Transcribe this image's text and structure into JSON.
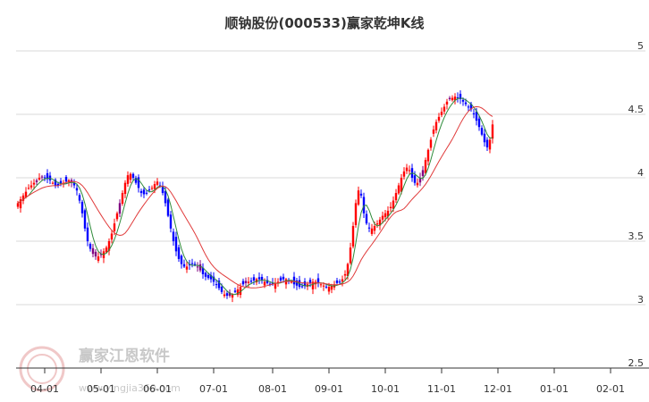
{
  "chart_data": {
    "type": "candlestick",
    "title": "顺钠股份(000533)赢家乾坤K线",
    "xlabel": "",
    "ylabel": "",
    "ylim": [
      2.5,
      5.0
    ],
    "grid": true,
    "y_ticks": [
      {
        "value": 5.0,
        "label": "5"
      },
      {
        "value": 4.5,
        "label": "4.5"
      },
      {
        "value": 4.0,
        "label": "4"
      },
      {
        "value": 3.5,
        "label": "3.5"
      },
      {
        "value": 3.0,
        "label": "3"
      },
      {
        "value": 2.5,
        "label": "2.5"
      }
    ],
    "x_ticks": [
      "04-01",
      "05-01",
      "06-01",
      "07-01",
      "08-01",
      "09-01",
      "10-01",
      "11-01",
      "12-01",
      "01-01",
      "02-01"
    ],
    "x_tick_index": [
      10,
      31,
      52,
      73,
      95,
      116,
      137,
      158,
      179,
      200,
      221
    ],
    "candle_colors": {
      "up": "#ff0000",
      "down": "#0000ff",
      "mixed": "#800080"
    },
    "series": [
      {
        "name": "",
        "kind": "candles",
        "close": [
          3.8,
          3.83,
          3.86,
          3.89,
          3.92,
          3.94,
          3.96,
          3.98,
          4.0,
          4.01,
          4.0,
          3.99,
          3.98,
          3.96,
          3.94,
          3.94,
          3.95,
          3.96,
          3.97,
          3.98,
          3.96,
          3.94,
          3.9,
          3.82,
          3.72,
          3.6,
          3.5,
          3.44,
          3.4,
          3.38,
          3.38,
          3.4,
          3.42,
          3.45,
          3.5,
          3.56,
          3.64,
          3.72,
          3.8,
          3.88,
          3.96,
          4.02,
          4.03,
          4.0,
          3.96,
          3.92,
          3.88,
          3.87,
          3.88,
          3.9,
          3.92,
          3.95,
          3.97,
          3.94,
          3.88,
          3.8,
          3.7,
          3.6,
          3.5,
          3.42,
          3.36,
          3.32,
          3.3,
          3.3,
          3.31,
          3.32,
          3.32,
          3.3,
          3.27,
          3.24,
          3.22,
          3.21,
          3.2,
          3.18,
          3.16,
          3.13,
          3.1,
          3.08,
          3.07,
          3.07,
          3.08,
          3.1,
          3.12,
          3.14,
          3.16,
          3.17,
          3.18,
          3.18,
          3.19,
          3.2,
          3.2,
          3.19,
          3.18,
          3.17,
          3.16,
          3.16,
          3.17,
          3.18,
          3.19,
          3.2,
          3.2,
          3.19,
          3.18,
          3.16,
          3.15,
          3.14,
          3.14,
          3.15,
          3.16,
          3.17,
          3.18,
          3.18,
          3.17,
          3.16,
          3.15,
          3.14,
          3.14,
          3.15,
          3.16,
          3.17,
          3.18,
          3.2,
          3.24,
          3.32,
          3.45,
          3.62,
          3.8,
          3.9,
          3.86,
          3.72,
          3.64,
          3.6,
          3.6,
          3.62,
          3.64,
          3.67,
          3.7,
          3.72,
          3.74,
          3.77,
          3.82,
          3.88,
          3.94,
          4.0,
          4.05,
          4.08,
          4.06,
          4.0,
          3.96,
          3.96,
          4.0,
          4.06,
          4.14,
          4.22,
          4.3,
          4.38,
          4.44,
          4.48,
          4.52,
          4.56,
          4.6,
          4.62,
          4.63,
          4.64,
          4.63,
          4.62,
          4.6,
          4.58,
          4.56,
          4.54,
          4.5,
          4.45,
          4.4,
          4.34,
          4.28,
          4.24,
          4.3,
          4.42
        ]
      },
      {
        "name": "",
        "kind": "ma_short",
        "color": "#2e8b3a"
      },
      {
        "name": "",
        "kind": "ma_long",
        "color": "#e03a3a"
      }
    ]
  },
  "watermark": {
    "text": "赢家江恩软件",
    "url": "www.yingjia360.com"
  }
}
